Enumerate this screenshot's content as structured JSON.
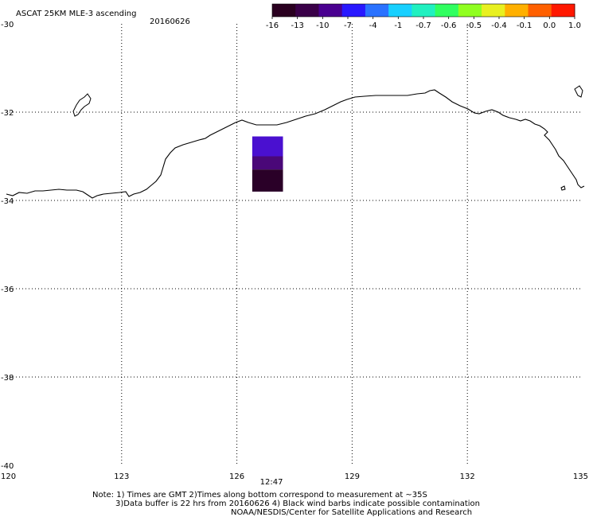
{
  "title": "ASCAT 25KM MLE-3 ascending",
  "date": "20160626",
  "colorbar": {
    "labels": [
      "-16",
      "-13",
      "-10",
      "-7",
      "-4",
      "-1",
      "-0.7",
      "-0.6",
      "-0.5",
      "-0.4",
      "-0.1",
      "0.0",
      "1.0"
    ],
    "colors": [
      "#2a0020",
      "#3a0048",
      "#4a0090",
      "#2818ff",
      "#2a72ff",
      "#18d0ff",
      "#20f0c0",
      "#30ff60",
      "#90ff20",
      "#e8f020",
      "#ffb000",
      "#ff6000",
      "#ff1800"
    ]
  },
  "map": {
    "lon_range": [
      120,
      135
    ],
    "lat_range": [
      -40,
      -30
    ],
    "lon_ticks": [
      "120",
      "123",
      "126",
      "129",
      "132",
      "135"
    ],
    "lat_ticks": [
      "-30",
      "-32",
      "-34",
      "-36",
      "-38",
      "-40"
    ],
    "grid_lons": [
      123,
      126,
      129,
      132
    ],
    "grid_lats": [
      -32,
      -34,
      -36,
      -38
    ],
    "coast_color": "#000000",
    "grid_color": "#000000",
    "data_cells": [
      {
        "lon": 126.4,
        "lat": -32.55,
        "dlon": 0.8,
        "dlat": 0.45,
        "color": "#4a10d0"
      },
      {
        "lon": 126.4,
        "lat": -33.0,
        "dlon": 0.8,
        "dlat": 0.3,
        "color": "#4a0878"
      },
      {
        "lon": 126.4,
        "lat": -33.3,
        "dlon": 0.8,
        "dlat": 0.5,
        "color": "#2a0028"
      }
    ]
  },
  "time_label": {
    "text": "12:47",
    "lon": 126.9,
    "color": "#cc0000"
  },
  "notes": [
    "Note: 1) Times are GMT 2)Times along bottom correspond to measurement at ~35S",
    "3)Data buffer is 22 hrs from 20160626 4) Black wind barbs indicate possible contamination",
    "NOAA/NESDIS/Center for Satellite Applications and Research"
  ]
}
